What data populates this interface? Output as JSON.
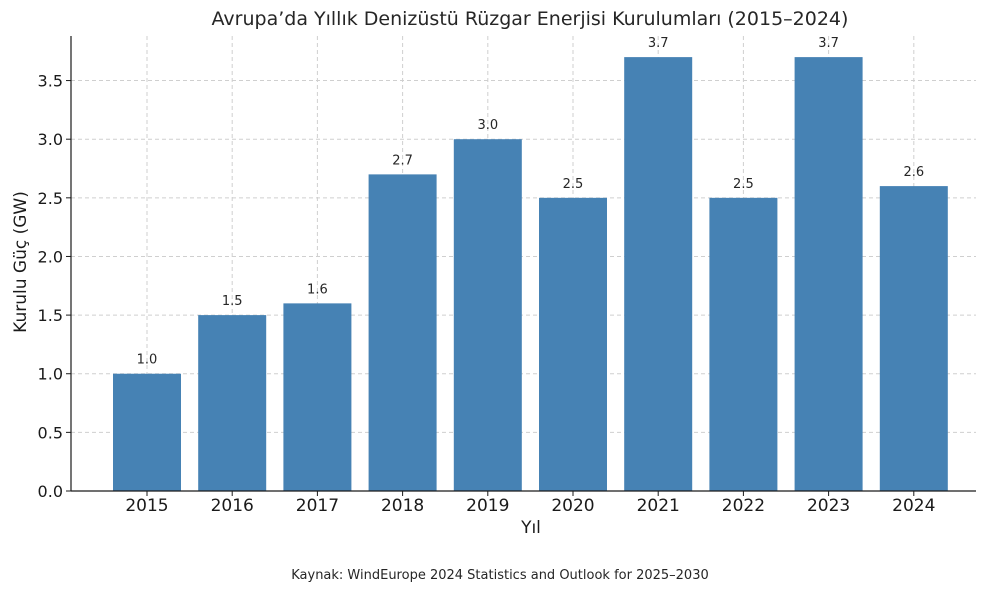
{
  "chart_data": {
    "type": "bar",
    "title": "Avrupa’da Yıllık Denizüstü Rüzgar Enerjisi Kurulumları (2015–2024)",
    "xlabel": "Yıl",
    "ylabel": "Kurulu Güç (GW)",
    "categories": [
      "2015",
      "2016",
      "2017",
      "2018",
      "2019",
      "2020",
      "2021",
      "2022",
      "2023",
      "2024"
    ],
    "values": [
      1.0,
      1.5,
      1.6,
      2.7,
      3.0,
      2.5,
      3.7,
      2.5,
      3.7,
      2.6
    ],
    "data_labels": [
      "1.0",
      "1.5",
      "1.6",
      "2.7",
      "3.0",
      "2.5",
      "3.7",
      "2.5",
      "3.7",
      "2.6"
    ],
    "yticks": [
      "0.0",
      "0.5",
      "1.0",
      "1.5",
      "2.0",
      "2.5",
      "3.0",
      "3.5"
    ],
    "ylim": [
      0,
      3.88
    ],
    "grid": true,
    "bar_color": "#4682b4"
  },
  "footer": {
    "source": "Kaynak: WindEurope 2024 Statistics and Outlook for 2025–2030"
  }
}
